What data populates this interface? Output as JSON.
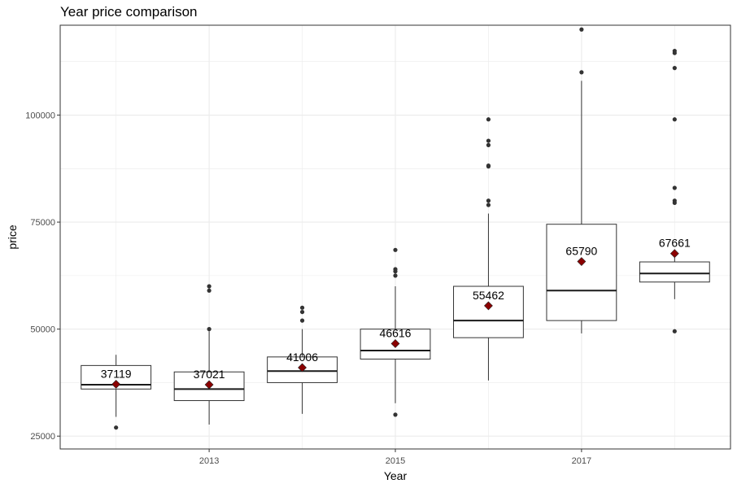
{
  "chart_data": {
    "type": "boxplot",
    "title": "Year price comparison",
    "xlabel": "Year",
    "ylabel": "price",
    "ylim": [
      22000,
      121000
    ],
    "xlim": [
      2011.4,
      2018.6
    ],
    "y_ticks": [
      25000,
      50000,
      75000,
      100000
    ],
    "y_tick_labels": [
      "25000",
      "50000",
      "75000",
      "100000"
    ],
    "x_ticks": [
      2013,
      2015,
      2017
    ],
    "x_tick_labels": [
      "2013",
      "2015",
      "2017"
    ],
    "grid": true,
    "colors": {
      "box_outline": "#333333",
      "mean_marker": "#8b0000",
      "outlier": "#333333",
      "grid": "#ebebeb"
    },
    "boxes": [
      {
        "year": 2012,
        "whisker_low": 29500,
        "q1": 36000,
        "median": 37000,
        "q3": 41500,
        "whisker_high": 44000,
        "mean": 37119,
        "mean_label": "37119",
        "outliers": [
          27000
        ]
      },
      {
        "year": 2013,
        "whisker_low": 27700,
        "q1": 33300,
        "median": 36000,
        "q3": 40000,
        "whisker_high": 49500,
        "mean": 37021,
        "mean_label": "37021",
        "outliers": [
          50000,
          59000,
          60000
        ]
      },
      {
        "year": 2014,
        "whisker_low": 30200,
        "q1": 37500,
        "median": 40200,
        "q3": 43500,
        "whisker_high": 50000,
        "mean": 41006,
        "mean_label": "41006",
        "outliers": [
          52000,
          54000,
          55000
        ]
      },
      {
        "year": 2015,
        "whisker_low": 32700,
        "q1": 43000,
        "median": 45000,
        "q3": 50000,
        "whisker_high": 60000,
        "mean": 46616,
        "mean_label": "46616",
        "outliers": [
          30000,
          62500,
          63500,
          64000,
          68500
        ]
      },
      {
        "year": 2016,
        "whisker_low": 38000,
        "q1": 48000,
        "median": 52000,
        "q3": 60000,
        "whisker_high": 77000,
        "mean": 55462,
        "mean_label": "55462",
        "outliers": [
          79000,
          80000,
          88000,
          88200,
          93000,
          94000,
          99000
        ]
      },
      {
        "year": 2017,
        "whisker_low": 49000,
        "q1": 52000,
        "median": 59000,
        "q3": 74500,
        "whisker_high": 108000,
        "mean": 65790,
        "mean_label": "65790",
        "outliers": [
          110000,
          120000
        ]
      },
      {
        "year": 2018,
        "whisker_low": 57000,
        "q1": 61000,
        "median": 63000,
        "q3": 65700,
        "whisker_high": 68000,
        "mean": 67661,
        "mean_label": "67661",
        "outliers": [
          49500,
          79500,
          80000,
          83000,
          99000,
          111000,
          114500,
          115000
        ]
      }
    ]
  }
}
